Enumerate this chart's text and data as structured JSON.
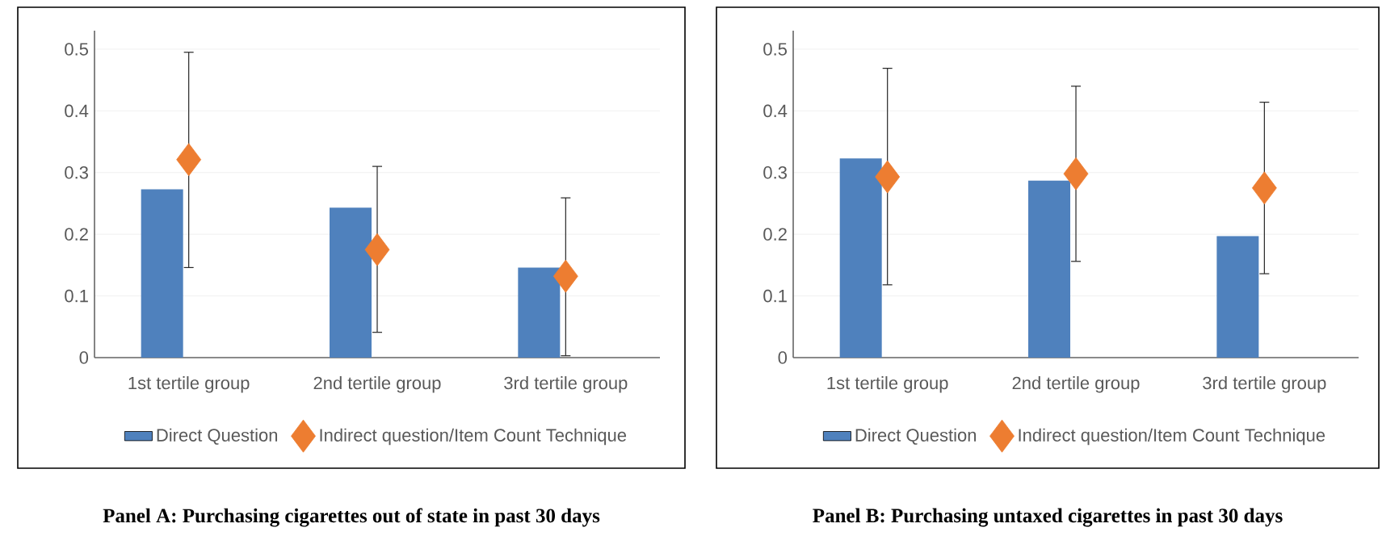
{
  "chart_data": [
    {
      "type": "bar",
      "title": "Panel A: Purchasing cigarettes out of state in past 30 days",
      "categories": [
        "1st tertile group",
        "2nd tertile group",
        "3rd tertile group"
      ],
      "series": [
        {
          "name": "Direct Question",
          "color": "#4f81bd",
          "values": [
            0.273,
            0.243,
            0.146
          ]
        },
        {
          "name": "Indirect question/Item Count Technique",
          "type": "scatter",
          "color": "#ed7d31",
          "marker": "diamond",
          "x": [
            "1st tertile group",
            "2nd tertile group",
            "3rd tertile group"
          ],
          "values": [
            0.321,
            0.175,
            0.132
          ],
          "errors": [
            [
              0.146,
              0.495
            ],
            [
              0.041,
              0.31
            ],
            [
              0.003,
              0.259
            ]
          ]
        }
      ],
      "ylim": [
        0,
        0.53
      ],
      "yticks": [
        0,
        0.1,
        0.2,
        0.3,
        0.4,
        0.5
      ],
      "grid": "y",
      "legend": "bottom"
    },
    {
      "type": "bar",
      "title": "Panel B: Purchasing untaxed cigarettes in past 30 days",
      "categories": [
        "1st tertile group",
        "2nd tertile group",
        "3rd tertile group"
      ],
      "series": [
        {
          "name": "Direct Question",
          "color": "#4f81bd",
          "values": [
            0.323,
            0.287,
            0.197
          ]
        },
        {
          "name": "Indirect question/Item Count Technique",
          "type": "scatter",
          "color": "#ed7d31",
          "marker": "diamond",
          "x": [
            "1st tertile group",
            "2nd tertile group",
            "3rd tertile group"
          ],
          "values": [
            0.293,
            0.298,
            0.275
          ],
          "errors": [
            [
              0.118,
              0.469
            ],
            [
              0.156,
              0.44
            ],
            [
              0.136,
              0.414
            ]
          ]
        }
      ],
      "ylim": [
        0,
        0.53
      ],
      "yticks": [
        0,
        0.1,
        0.2,
        0.3,
        0.4,
        0.5
      ],
      "grid": "y",
      "legend": "bottom"
    }
  ]
}
